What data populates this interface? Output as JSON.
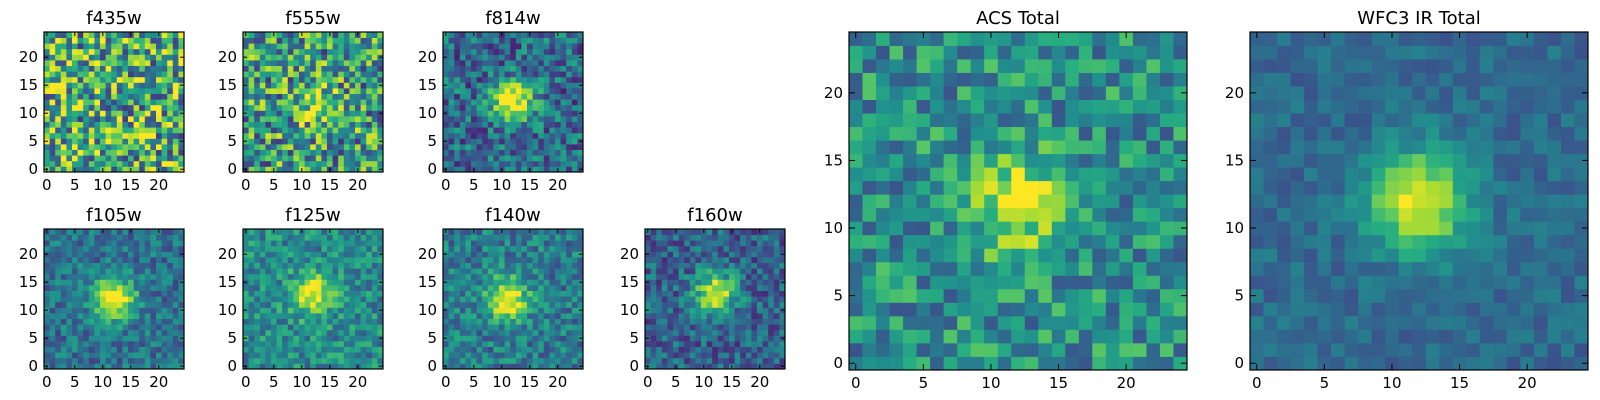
{
  "figure": {
    "description_free": true
  },
  "chart_data": {
    "type": "heatmap",
    "colormap": "viridis",
    "image_size": [
      25,
      25
    ],
    "x_ticks": [
      0,
      5,
      10,
      15,
      20
    ],
    "y_ticks": [
      0,
      5,
      10,
      15,
      20
    ],
    "panels": [
      {
        "id": "f435w",
        "title": "f435w",
        "xlim": [
          0,
          25
        ],
        "ylim": [
          0,
          25
        ],
        "source_center": null,
        "peak_amplitude": 0.0,
        "noise": 0.55,
        "background": 0.62
      },
      {
        "id": "f555w",
        "title": "f555w",
        "xlim": [
          0,
          25
        ],
        "ylim": [
          0,
          25
        ],
        "source_center": [
          12,
          12
        ],
        "peak_amplitude": 0.25,
        "noise": 0.5,
        "background": 0.55
      },
      {
        "id": "f814w",
        "title": "f814w",
        "xlim": [
          0,
          25
        ],
        "ylim": [
          0,
          25
        ],
        "source_center": [
          12,
          12
        ],
        "peak_amplitude": 0.7,
        "noise": 0.32,
        "background": 0.35
      },
      {
        "id": "f105w",
        "title": "f105w",
        "xlim": [
          0,
          25
        ],
        "ylim": [
          0,
          25
        ],
        "source_center": [
          12,
          12
        ],
        "peak_amplitude": 0.7,
        "noise": 0.22,
        "background": 0.38
      },
      {
        "id": "f125w",
        "title": "f125w",
        "xlim": [
          0,
          25
        ],
        "ylim": [
          0,
          25
        ],
        "source_center": [
          12,
          13
        ],
        "peak_amplitude": 0.55,
        "noise": 0.25,
        "background": 0.48
      },
      {
        "id": "f140w",
        "title": "f140w",
        "xlim": [
          0,
          25
        ],
        "ylim": [
          0,
          25
        ],
        "source_center": [
          11,
          12
        ],
        "peak_amplitude": 0.6,
        "noise": 0.25,
        "background": 0.42
      },
      {
        "id": "f160w",
        "title": "f160w",
        "xlim": [
          0,
          25
        ],
        "ylim": [
          0,
          25
        ],
        "source_center": [
          12,
          13
        ],
        "peak_amplitude": 0.65,
        "noise": 0.25,
        "background": 0.32
      },
      {
        "id": "acs_total",
        "title": "ACS Total",
        "xlim": [
          0,
          25
        ],
        "ylim": [
          0,
          25
        ],
        "source_center": [
          12,
          12
        ],
        "peak_amplitude": 0.45,
        "noise": 0.3,
        "background": 0.5
      },
      {
        "id": "wfc3_ir_total",
        "title": "WFC3 IR Total",
        "xlim": [
          0,
          25
        ],
        "ylim": [
          0,
          25
        ],
        "source_center": [
          12,
          12
        ],
        "peak_amplitude": 0.65,
        "noise": 0.12,
        "background": 0.35
      }
    ]
  }
}
